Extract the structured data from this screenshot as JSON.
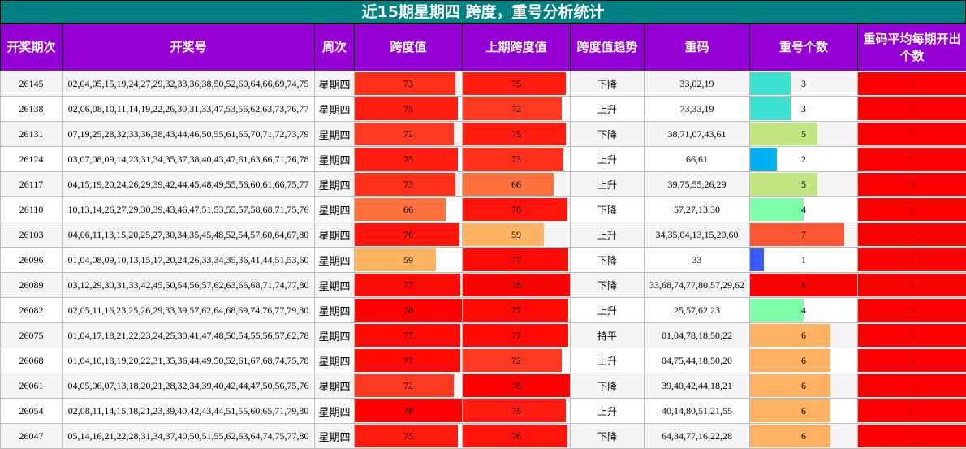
{
  "title": "近15期星期四 跨度，重号分析统计",
  "table": {
    "header": [
      "开奖期次",
      "开奖号",
      "周次",
      "跨度值",
      "上期跨度值",
      "跨度值趋势",
      "重码",
      "重号个数",
      "重码平均每期开出个数"
    ],
    "rows": [
      [
        26145,
        "02,04,05,15,19,24,27,29,32,33,36,38,50,52,60,64,66,69,74,75",
        "星期四",
        73,
        75,
        "下降",
        "33,02,19",
        3,
        5
      ],
      [
        26138,
        "02,06,08,10,11,14,19,22,26,30,31,33,47,53,56,62,63,73,76,77",
        "星期四",
        75,
        72,
        "上升",
        "73,33,19",
        3,
        5
      ],
      [
        26131,
        "07,19,25,28,32,33,36,38,43,44,46,50,55,61,65,70,71,72,73,79",
        "星期四",
        72,
        75,
        "下降",
        "38,71,07,43,61",
        5,
        5
      ],
      [
        26124,
        "03,07,08,09,14,23,31,34,35,37,38,40,43,47,61,63,66,71,76,78",
        "星期四",
        75,
        73,
        "上升",
        "66,61",
        2,
        5
      ],
      [
        26117,
        "04,15,19,20,24,26,29,39,42,44,45,48,49,55,56,60,61,66,75,77",
        "星期四",
        73,
        66,
        "上升",
        "39,75,55,26,29",
        5,
        5
      ],
      [
        26110,
        "10,13,14,26,27,29,30,39,43,46,47,51,53,55,57,58,68,71,75,76",
        "星期四",
        66,
        76,
        "下降",
        "57,27,13,30",
        4,
        5
      ],
      [
        26103,
        "04,06,11,13,15,20,25,27,30,34,35,45,48,52,54,57,60,64,67,80",
        "星期四",
        76,
        59,
        "上升",
        "34,35,04,13,15,20,60",
        7,
        5
      ],
      [
        26096,
        "01,04,08,09,10,13,15,17,20,24,26,33,34,35,36,41,44,51,53,60",
        "星期四",
        59,
        77,
        "下降",
        "33",
        1,
        5
      ],
      [
        26089,
        "03,12,29,30,31,33,42,45,50,54,56,57,62,63,66,68,71,74,77,80",
        "星期四",
        77,
        78,
        "下降",
        "33,68,74,77,80,57,29,62",
        8,
        5
      ],
      [
        26082,
        "02,05,11,16,23,25,26,29,33,39,57,62,64,68,69,74,76,77,79,80",
        "星期四",
        78,
        77,
        "上升",
        "25,57,62,23",
        4,
        5
      ],
      [
        26075,
        "01,04,17,18,21,22,23,24,25,30,41,47,48,50,54,55,56,57,62,78",
        "星期四",
        77,
        77,
        "持平",
        "01,04,78,18,50,22",
        6,
        5
      ],
      [
        26068,
        "01,04,10,18,19,20,22,31,35,36,44,49,50,52,61,67,68,74,75,78",
        "星期四",
        77,
        72,
        "上升",
        "04,75,44,18,50,20",
        6,
        5
      ],
      [
        26061,
        "04,05,06,07,13,18,20,21,28,32,34,39,40,42,44,47,50,56,75,76",
        "星期四",
        72,
        78,
        "下降",
        "39,40,42,44,18,21",
        6,
        5
      ],
      [
        26054,
        "02,08,11,14,15,18,21,23,39,40,42,43,44,51,55,60,65,71,79,80",
        "星期四",
        78,
        75,
        "上升",
        "40,14,80,51,21,55",
        6,
        5
      ],
      [
        26047,
        "05,14,16,21,22,28,31,34,37,40,50,51,55,62,63,64,74,75,77,80",
        "星期四",
        75,
        76,
        "下降",
        "64,34,77,16,22,28",
        6,
        5
      ]
    ]
  }
}
